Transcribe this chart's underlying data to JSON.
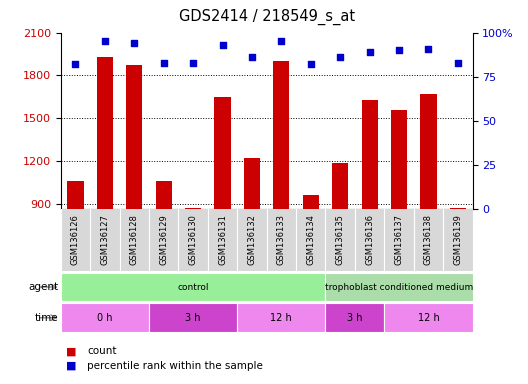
{
  "title": "GDS2414 / 218549_s_at",
  "samples": [
    "GSM136126",
    "GSM136127",
    "GSM136128",
    "GSM136129",
    "GSM136130",
    "GSM136131",
    "GSM136132",
    "GSM136133",
    "GSM136134",
    "GSM136135",
    "GSM136136",
    "GSM136137",
    "GSM136138",
    "GSM136139"
  ],
  "counts": [
    1060,
    1930,
    1870,
    1060,
    870,
    1650,
    1220,
    1900,
    960,
    1185,
    1630,
    1555,
    1670,
    870
  ],
  "percentiles": [
    82,
    95,
    94,
    83,
    83,
    93,
    86,
    95,
    82,
    86,
    89,
    90,
    91,
    83
  ],
  "ylim_left": [
    860,
    2100
  ],
  "ylim_right": [
    0,
    100
  ],
  "yticks_left": [
    900,
    1200,
    1500,
    1800,
    2100
  ],
  "yticks_right": [
    0,
    25,
    50,
    75,
    100
  ],
  "bar_color": "#cc0000",
  "dot_color": "#0000cc",
  "tick_label_color_left": "#cc0000",
  "tick_label_color_right": "#0000cc",
  "agent_groups": [
    {
      "label": "control",
      "start": 0,
      "end": 9,
      "color": "#99ee99"
    },
    {
      "label": "trophoblast conditioned medium",
      "start": 9,
      "end": 14,
      "color": "#aaddaa"
    }
  ],
  "time_colors_alt": [
    "#ee88ee",
    "#cc44cc"
  ],
  "time_groups": [
    {
      "label": "0 h",
      "start": 0,
      "end": 3,
      "alt": 0
    },
    {
      "label": "3 h",
      "start": 3,
      "end": 6,
      "alt": 1
    },
    {
      "label": "12 h",
      "start": 6,
      "end": 9,
      "alt": 0
    },
    {
      "label": "3 h",
      "start": 9,
      "end": 11,
      "alt": 1
    },
    {
      "label": "12 h",
      "start": 11,
      "end": 14,
      "alt": 0
    }
  ],
  "legend_count_color": "#cc0000",
  "legend_dot_color": "#0000cc",
  "sample_bg_color": "#d8d8d8",
  "chart_bg_color": "#ffffff"
}
